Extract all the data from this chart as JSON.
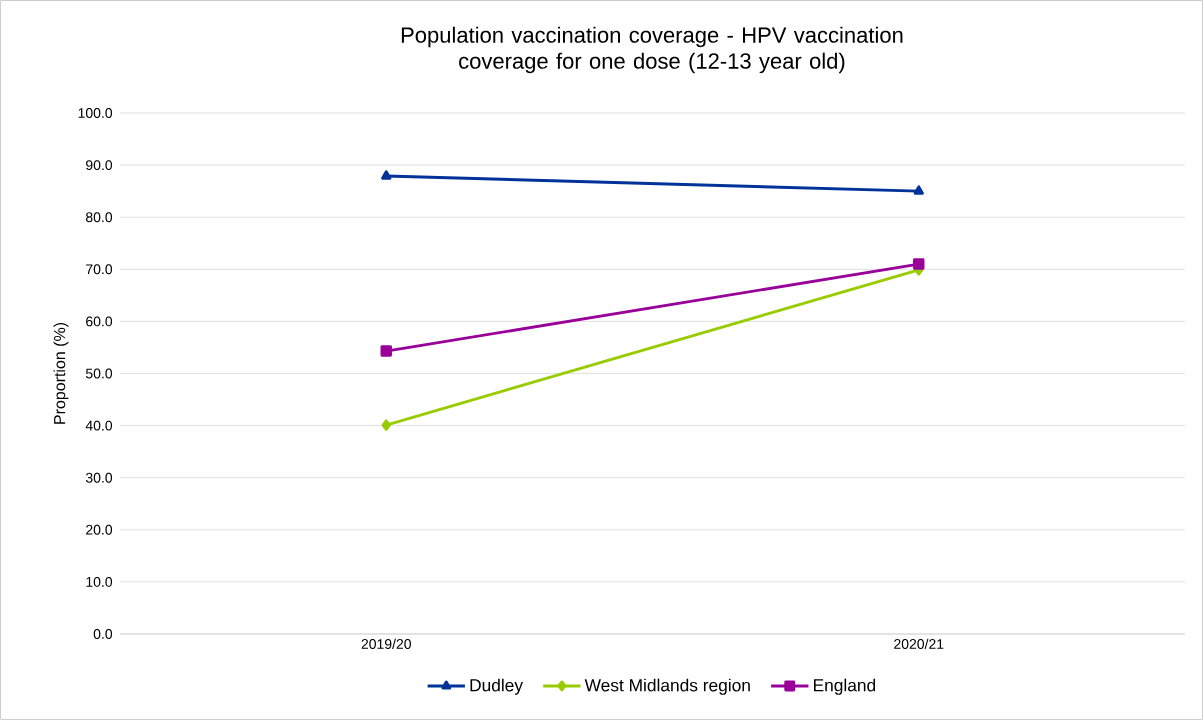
{
  "chart_data": {
    "type": "line",
    "title": "Population vaccination coverage - HPV vaccination coverage for one dose (12-13 year old)",
    "ylabel": "Proportion (%)",
    "categories": [
      "2019/20",
      "2020/21"
    ],
    "series": [
      {
        "name": "Dudley",
        "color": "#003399",
        "marker": "triangle",
        "values": [
          87.9,
          85.0
        ]
      },
      {
        "name": "West Midlands region",
        "color": "#99cc00",
        "marker": "diamond",
        "values": [
          40.1,
          69.9
        ]
      },
      {
        "name": "England",
        "color": "#990099",
        "marker": "square",
        "values": [
          54.3,
          71.0
        ]
      }
    ],
    "ylim": [
      0,
      100
    ],
    "yticks": [
      {
        "value": 0,
        "label": "0.0"
      },
      {
        "value": 10,
        "label": "10.0"
      },
      {
        "value": 20,
        "label": "20.0"
      },
      {
        "value": 30,
        "label": "30.0"
      },
      {
        "value": 40,
        "label": "40.0"
      },
      {
        "value": 50,
        "label": "50.0"
      },
      {
        "value": 60,
        "label": "60.0"
      },
      {
        "value": 70,
        "label": "70.0"
      },
      {
        "value": 80,
        "label": "80.0"
      },
      {
        "value": 90,
        "label": "90.0"
      },
      {
        "value": 100,
        "label": "100.0"
      }
    ],
    "grid": "y",
    "legend": "bottom",
    "line_style": "solid"
  }
}
